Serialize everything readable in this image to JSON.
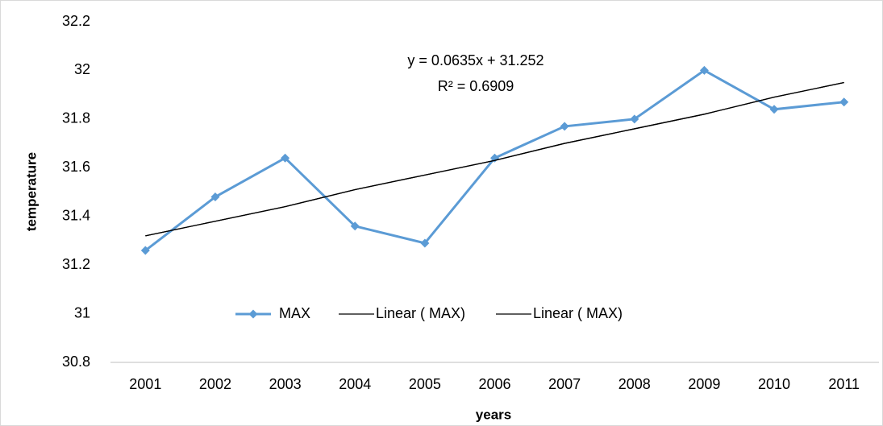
{
  "chart_data": {
    "type": "line",
    "x_label": "years",
    "y_label": "temperature",
    "annotations": [
      "y = 0.0635x + 31.252",
      "R² = 0.6909"
    ],
    "categories": [
      "2001",
      "2002",
      "2003",
      "2004",
      "2005",
      "2006",
      "2007",
      "2008",
      "2009",
      "2010",
      "2011"
    ],
    "series": [
      {
        "name": "MAX",
        "color": "#5b9bd5",
        "marker": "diamond",
        "values": [
          31.26,
          31.48,
          31.64,
          31.36,
          31.29,
          31.64,
          31.77,
          31.8,
          32.0,
          31.84,
          31.87
        ]
      },
      {
        "name": "Linear ( MAX)",
        "color": "#000000",
        "values": [
          31.32,
          31.38,
          31.44,
          31.51,
          31.57,
          31.63,
          31.7,
          31.76,
          31.82,
          31.89,
          31.95
        ]
      },
      {
        "name": "Linear ( MAX)",
        "color": "#000000",
        "values": [
          31.32,
          31.38,
          31.44,
          31.51,
          31.57,
          31.63,
          31.7,
          31.76,
          31.82,
          31.89,
          31.95
        ]
      }
    ],
    "ylim": [
      30.8,
      32.2
    ],
    "yticks": [
      30.8,
      31,
      31.2,
      31.4,
      31.6,
      31.8,
      32,
      32.2
    ],
    "grid": false
  }
}
